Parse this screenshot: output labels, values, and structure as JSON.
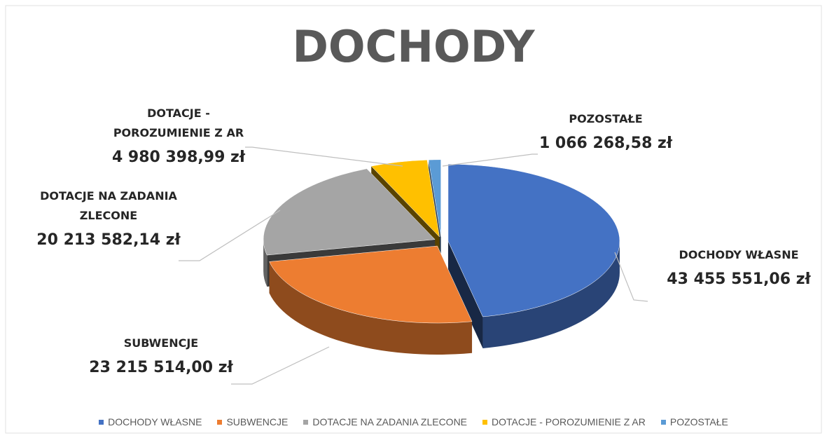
{
  "chart_data": {
    "type": "pie",
    "title": "DOCHODY",
    "categories": [
      "DOCHODY WŁASNE",
      "SUBWENCJE",
      "DOTACJE NA ZADANIA ZLECONE",
      "DOTACJE - POROZUMIENIE Z AR",
      "POZOSTAŁE"
    ],
    "values": [
      43455551.06,
      23215514.0,
      20213582.14,
      4980398.99,
      1066268.58
    ],
    "value_labels": [
      "43 455 551,06 zł",
      "23 215 514,00 zł",
      "20 213 582,14 zł",
      "4 980 398,99 zł",
      "1 066 268,58 zł"
    ],
    "colors": [
      "#4472c4",
      "#ed7d31",
      "#a5a5a5",
      "#ffc000",
      "#5b9bd5"
    ],
    "legend": "bottom"
  }
}
